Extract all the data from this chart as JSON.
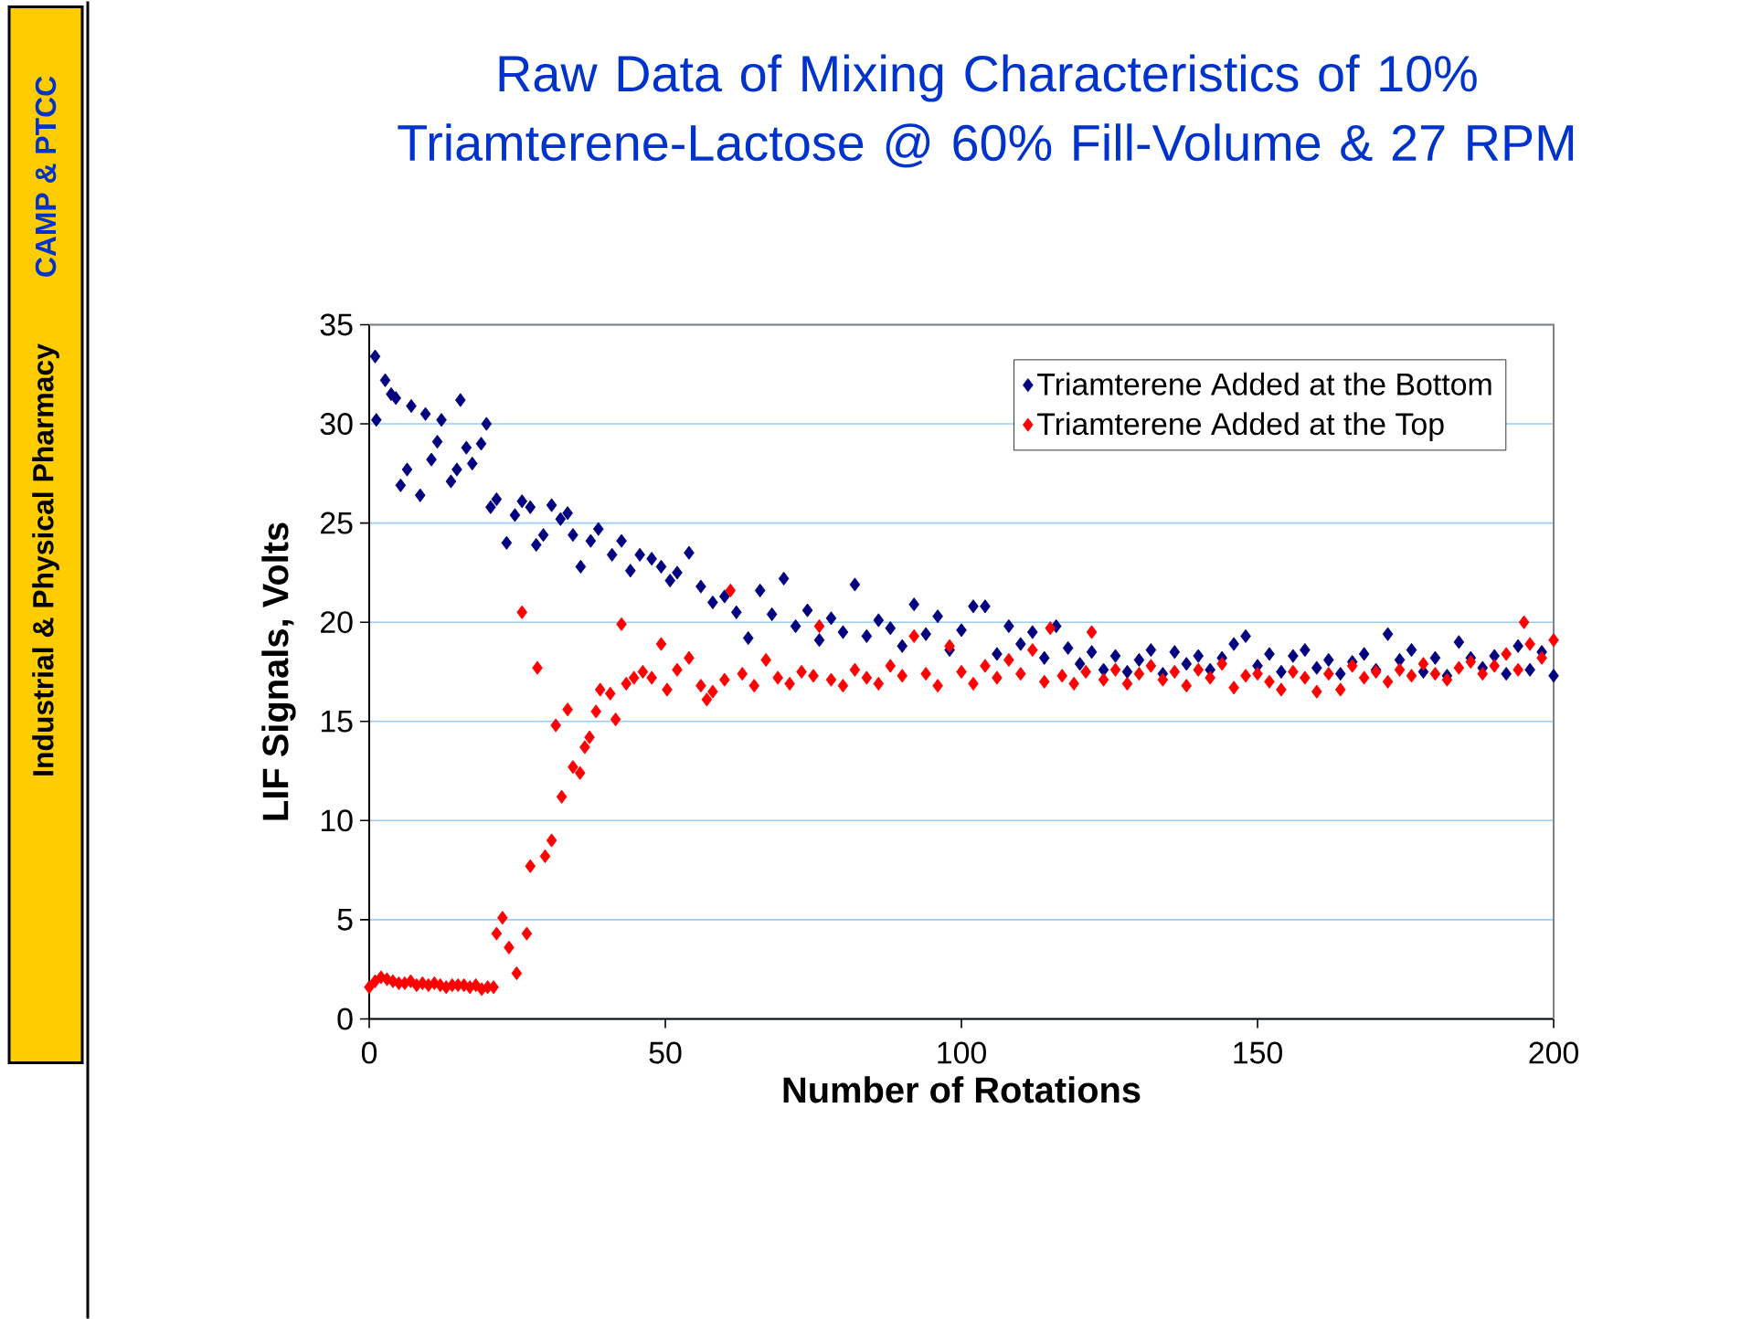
{
  "chart_data": {
    "type": "scatter",
    "title": "Raw Data of Mixing Characteristics of 10% Triamterene-Lactose @ 60% Fill-Volume & 27 RPM",
    "xlabel": "Number of Rotations",
    "ylabel": "LIF Signals, Volts",
    "annotations": [
      "CAMP & PTCC",
      "Industrial & Physical Pharmacy"
    ],
    "xlim": [
      0,
      200
    ],
    "xticks": [
      0,
      50,
      100,
      150,
      200
    ],
    "ylim": [
      0,
      35
    ],
    "yticks": [
      0,
      5,
      10,
      15,
      20,
      25,
      30,
      35
    ],
    "grid": "y",
    "legend": "top right",
    "marker": "diamond",
    "series": [
      {
        "name": "Triamterene Added at the Bottom",
        "color": "#000080",
        "x": [
          1,
          1.2,
          2.7,
          3.7,
          4.5,
          5.3,
          6.4,
          7.1,
          8.6,
          9.5,
          10.5,
          11.5,
          12.2,
          13.8,
          14.8,
          15.4,
          16.4,
          17.4,
          18.9,
          19.8,
          20.5,
          21.5,
          23.2,
          24.6,
          25.8,
          27.2,
          28.2,
          29.4,
          30.8,
          32.3,
          33.5,
          34.4,
          35.7,
          37.4,
          38.7,
          41,
          42.6,
          44.1,
          45.7,
          47.7,
          49.3,
          50.8,
          52,
          54,
          56,
          58,
          60,
          62,
          64,
          66,
          68,
          70,
          72,
          74,
          76,
          78,
          80,
          82,
          84,
          86,
          88,
          90,
          92,
          94,
          96,
          98,
          100,
          102,
          104,
          106,
          108,
          110,
          112,
          114,
          116,
          118,
          120,
          122,
          124,
          126,
          128,
          130,
          132,
          134,
          136,
          138,
          140,
          142,
          144,
          146,
          148,
          150,
          152,
          154,
          156,
          158,
          160,
          162,
          164,
          166,
          168,
          170,
          172,
          174,
          176,
          178,
          180,
          182,
          184,
          186,
          188,
          190,
          192,
          194,
          196,
          198,
          200
        ],
        "values": [
          33.4,
          30.2,
          32.2,
          31.5,
          31.3,
          26.9,
          27.7,
          30.9,
          26.4,
          30.5,
          28.2,
          29.1,
          30.2,
          27.1,
          27.7,
          31.2,
          28.8,
          28.0,
          29.0,
          30.0,
          25.8,
          26.2,
          24.0,
          25.4,
          26.1,
          25.8,
          23.9,
          24.4,
          25.9,
          25.2,
          25.5,
          24.4,
          22.8,
          24.1,
          24.7,
          23.4,
          24.1,
          22.6,
          23.4,
          23.2,
          22.8,
          22.1,
          22.5,
          23.5,
          21.8,
          21.0,
          21.3,
          20.5,
          19.2,
          21.6,
          20.4,
          22.2,
          19.8,
          20.6,
          19.1,
          20.2,
          19.5,
          21.9,
          19.3,
          20.1,
          19.7,
          18.8,
          20.9,
          19.4,
          20.3,
          18.6,
          19.6,
          20.8,
          20.8,
          18.4,
          19.8,
          18.9,
          19.5,
          18.2,
          19.8,
          18.7,
          17.9,
          18.5,
          17.6,
          18.3,
          17.5,
          18.1,
          18.6,
          17.4,
          18.5,
          17.9,
          18.3,
          17.6,
          18.2,
          18.9,
          19.3,
          17.8,
          18.4,
          17.5,
          18.3,
          18.6,
          17.7,
          18.1,
          17.4,
          18.0,
          18.4,
          17.6,
          19.4,
          18.1,
          18.6,
          17.5,
          18.2,
          17.3,
          19.0,
          18.2,
          17.7,
          18.3,
          17.4,
          18.8,
          17.6,
          18.5,
          17.3
        ]
      },
      {
        "name": "Triamterene Added at the Top",
        "color": "#ff0000",
        "x": [
          0,
          1,
          2,
          3,
          4,
          5,
          6,
          7,
          8,
          9,
          10,
          11,
          12,
          13,
          14,
          15,
          16,
          17,
          18,
          19,
          20,
          21,
          21.5,
          22.5,
          23.6,
          24.9,
          25.8,
          26.6,
          27.2,
          28.4,
          29.7,
          30.8,
          31.5,
          32.5,
          33.5,
          34.4,
          35.6,
          36.4,
          37.2,
          38.3,
          39,
          40.7,
          41.6,
          42.6,
          43.4,
          44.7,
          46.2,
          47.7,
          49.3,
          50.3,
          52,
          54,
          56,
          57,
          58,
          60,
          61,
          63,
          65,
          67,
          69,
          71,
          73,
          75,
          76,
          78,
          80,
          82,
          84,
          86,
          88,
          90,
          92,
          94,
          96,
          98,
          100,
          102,
          104,
          106,
          108,
          110,
          112,
          114,
          115,
          117,
          119,
          121,
          122,
          124,
          126,
          128,
          130,
          132,
          134,
          136,
          138,
          140,
          142,
          144,
          146,
          148,
          150,
          152,
          154,
          156,
          158,
          160,
          162,
          164,
          166,
          168,
          170,
          172,
          174,
          176,
          178,
          180,
          182,
          184,
          186,
          188,
          190,
          192,
          194,
          195,
          196,
          198,
          200
        ],
        "values": [
          1.6,
          1.9,
          2.1,
          2.0,
          1.9,
          1.8,
          1.8,
          1.9,
          1.7,
          1.8,
          1.7,
          1.8,
          1.7,
          1.6,
          1.7,
          1.7,
          1.7,
          1.6,
          1.7,
          1.5,
          1.6,
          1.6,
          4.3,
          5.1,
          3.6,
          2.3,
          20.5,
          4.3,
          7.7,
          17.7,
          8.2,
          9.0,
          14.8,
          11.2,
          15.6,
          12.7,
          12.4,
          13.7,
          14.2,
          15.5,
          16.6,
          16.4,
          15.1,
          19.9,
          16.9,
          17.2,
          17.5,
          17.2,
          18.9,
          16.6,
          17.6,
          18.2,
          16.8,
          16.1,
          16.5,
          17.1,
          21.6,
          17.4,
          16.8,
          18.1,
          17.2,
          16.9,
          17.5,
          17.3,
          19.8,
          17.1,
          16.8,
          17.6,
          17.2,
          16.9,
          17.8,
          17.3,
          19.3,
          17.4,
          16.8,
          18.8,
          17.5,
          16.9,
          17.8,
          17.2,
          18.1,
          17.4,
          18.6,
          17.0,
          19.7,
          17.3,
          16.9,
          17.5,
          19.5,
          17.1,
          17.6,
          16.9,
          17.4,
          17.8,
          17.1,
          17.5,
          16.8,
          17.6,
          17.2,
          17.9,
          16.7,
          17.3,
          17.4,
          17.0,
          16.6,
          17.5,
          17.2,
          16.5,
          17.4,
          16.6,
          17.8,
          17.2,
          17.5,
          17.0,
          17.6,
          17.3,
          17.9,
          17.4,
          17.1,
          17.7,
          18.0,
          17.4,
          17.8,
          18.4,
          17.6,
          20.0,
          18.9,
          18.2,
          19.1
        ]
      }
    ]
  }
}
